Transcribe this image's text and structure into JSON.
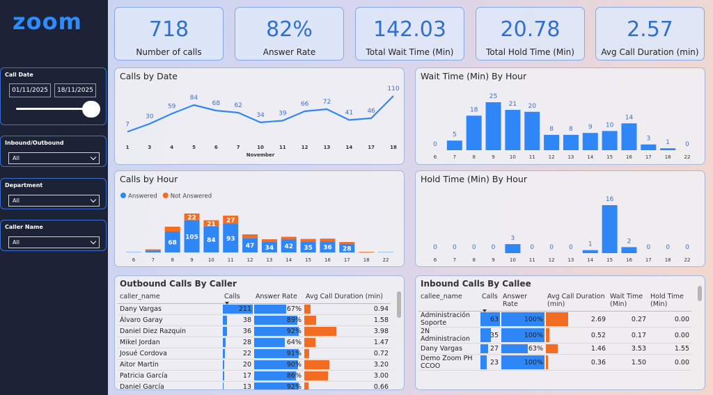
{
  "logo": "zoom",
  "filters": {
    "call_date": {
      "title": "Call Date",
      "start": "01/11/2025",
      "end": "18/11/2025"
    },
    "dropdowns": [
      {
        "title": "Inbound/Outbound",
        "value": "All"
      },
      {
        "title": "Department",
        "value": "All"
      },
      {
        "title": "Caller Name",
        "value": "All"
      }
    ]
  },
  "kpis": [
    {
      "value": "718",
      "label": "Number of calls"
    },
    {
      "value": "82%",
      "label": "Answer Rate"
    },
    {
      "value": "142.03",
      "label": "Total Wait Time (Min)"
    },
    {
      "value": "20.78",
      "label": "Total Hold Time (Min)"
    },
    {
      "value": "2.57",
      "label": "Avg Call Duration (min)"
    }
  ],
  "chart_data": [
    {
      "type": "line",
      "title": "Calls by Date",
      "x_label": "November",
      "categories": [
        "1",
        "3",
        "4",
        "5",
        "6",
        "7",
        "10",
        "11",
        "12",
        "13",
        "14",
        "17",
        "18"
      ],
      "values": [
        7,
        30,
        59,
        84,
        68,
        62,
        34,
        39,
        66,
        72,
        41,
        46,
        110
      ],
      "color": "#2f86f6"
    },
    {
      "type": "bar",
      "title": "Wait Time (Min) By Hour",
      "categories": [
        "6",
        "7",
        "8",
        "9",
        "10",
        "11",
        "12",
        "13",
        "14",
        "15",
        "16",
        "17",
        "18",
        "22"
      ],
      "values": [
        0,
        5,
        18,
        25,
        21,
        20,
        8,
        8,
        9,
        10,
        14,
        3,
        1,
        0
      ],
      "color": "#2f86f6"
    },
    {
      "type": "stacked-bar",
      "title": "Calls by Hour",
      "categories": [
        "6",
        "7",
        "8",
        "9",
        "10",
        "11",
        "12",
        "13",
        "14",
        "15",
        "16",
        "17",
        "18",
        "22"
      ],
      "series": [
        {
          "name": "Answered",
          "color": "#2f86f6",
          "values": [
            1,
            6,
            68,
            105,
            84,
            93,
            47,
            34,
            42,
            35,
            36,
            28,
            0,
            1
          ]
        },
        {
          "name": "Not Answered",
          "color": "#f26d21",
          "values": [
            0,
            4,
            16,
            22,
            21,
            27,
            12,
            9,
            9,
            9,
            9,
            6,
            2,
            0
          ]
        }
      ]
    },
    {
      "type": "bar",
      "title": "Hold Time (Min) By Hour",
      "categories": [
        "6",
        "7",
        "8",
        "9",
        "10",
        "11",
        "12",
        "13",
        "14",
        "15",
        "16",
        "17",
        "18",
        "22"
      ],
      "values": [
        0,
        0,
        0,
        0,
        3,
        0,
        0,
        0,
        1,
        16,
        2,
        0,
        0,
        0
      ],
      "color": "#2f86f6"
    }
  ],
  "tables": [
    {
      "title": "Outbound Calls By Caller",
      "columns": [
        "caller_name",
        "Calls",
        "Answer Rate",
        "Avg Call Duration (min)"
      ],
      "rows": [
        [
          "Dany Vargas",
          211,
          {
            "value": 67,
            "label": "67%"
          },
          0.94
        ],
        [
          "Álvaro Garay",
          38,
          {
            "value": 89,
            "label": "89%"
          },
          1.58
        ],
        [
          "Daniel Diez Razquin",
          36,
          {
            "value": 92,
            "label": "92%"
          },
          3.98
        ],
        [
          "Mikel Jordan",
          28,
          {
            "value": 64,
            "label": "64%"
          },
          1.47
        ],
        [
          "Josué Cordova",
          22,
          {
            "value": 91,
            "label": "91%"
          },
          0.72
        ],
        [
          "Aitor Martin",
          20,
          {
            "value": 90,
            "label": "90%"
          },
          {
            "value": 3.2,
            "label": "3.20"
          }
        ],
        [
          "Patricia García",
          17,
          {
            "value": 86,
            "label": "86%"
          },
          {
            "value": 3,
            "label": "3.00"
          }
        ],
        [
          "Daniel García",
          13,
          {
            "value": 92,
            "label": "92%"
          },
          0.66
        ]
      ]
    },
    {
      "title": "Inbound Calls By Callee",
      "columns": [
        "callee_name",
        "Calls",
        "Answer Rate",
        "Avg Call Duration (min)",
        "Wait Time (Min)",
        "Hold Time (Min)"
      ],
      "rows": [
        [
          "Administración Soporte",
          63,
          {
            "value": 100,
            "label": "100%"
          },
          2.69,
          "0.27",
          "0.00"
        ],
        [
          "2N Administracion",
          35,
          {
            "value": 100,
            "label": "100%"
          },
          0.52,
          "0.17",
          "0.00"
        ],
        [
          "Dany Vargas",
          27,
          {
            "value": 63,
            "label": "63%"
          },
          1.46,
          "3.53",
          "1.55"
        ],
        [
          "Demo Zoom PH CCOO",
          23,
          {
            "value": 100,
            "label": "100%"
          },
          0.36,
          "1.50",
          "0.00"
        ]
      ]
    }
  ]
}
